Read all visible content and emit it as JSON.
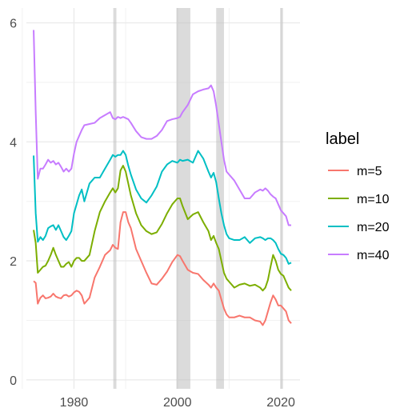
{
  "chart_data": {
    "type": "line",
    "xlim": [
      1970.8,
      2023.7
    ],
    "ylim": [
      -0.15,
      6.25
    ],
    "x_ticks": [
      1980,
      2000,
      2020
    ],
    "x_tick_labels": [
      "1980",
      "2000",
      "2020"
    ],
    "x_minor_ticks": [
      1970,
      1990,
      2010
    ],
    "y_ticks": [
      0,
      2,
      4,
      6
    ],
    "y_tick_labels": [
      "0",
      "2",
      "4",
      "6"
    ],
    "y_minor_ticks": [
      1,
      3,
      5
    ],
    "grid": true,
    "legend": {
      "title": "label",
      "position": "right"
    },
    "shaded_periods": [
      {
        "start": 1987.6,
        "end": 1988.2
      },
      {
        "start": 1999.8,
        "end": 2002.5
      },
      {
        "start": 2007.5,
        "end": 2009.0
      },
      {
        "start": 2019.9,
        "end": 2020.4
      }
    ],
    "series": [
      {
        "name": "m=5",
        "color": "#F8766D",
        "x": [
          1972.2,
          1972.6,
          1973.0,
          1973.5,
          1974.0,
          1974.5,
          1975.0,
          1975.5,
          1976.0,
          1976.5,
          1977.0,
          1977.5,
          1978.0,
          1978.5,
          1979.0,
          1979.5,
          1980.0,
          1980.5,
          1981.0,
          1981.5,
          1982.0,
          1983.0,
          1984.0,
          1985.0,
          1986.0,
          1987.0,
          1987.5,
          1988.0,
          1988.5,
          1989.0,
          1989.5,
          1990.0,
          1990.5,
          1991.0,
          1992.0,
          1993.0,
          1994.0,
          1995.0,
          1996.0,
          1997.0,
          1998.0,
          1999.0,
          2000.0,
          2000.5,
          2001.0,
          2002.0,
          2003.0,
          2004.0,
          2005.0,
          2006.0,
          2006.5,
          2007.0,
          2007.5,
          2008.0,
          2008.5,
          2009.0,
          2009.5,
          2010.0,
          2011.0,
          2012.0,
          2013.0,
          2014.0,
          2015.0,
          2016.0,
          2016.5,
          2017.0,
          2017.5,
          2018.0,
          2018.5,
          2019.0,
          2019.5,
          2020.0,
          2020.5,
          2021.0,
          2021.5,
          2022.0
        ],
        "y": [
          1.66,
          1.63,
          1.28,
          1.38,
          1.42,
          1.37,
          1.38,
          1.4,
          1.45,
          1.4,
          1.38,
          1.37,
          1.42,
          1.43,
          1.4,
          1.42,
          1.47,
          1.5,
          1.48,
          1.42,
          1.28,
          1.38,
          1.72,
          1.9,
          2.1,
          2.18,
          2.27,
          2.22,
          2.2,
          2.65,
          2.82,
          2.82,
          2.65,
          2.55,
          2.2,
          2.0,
          1.8,
          1.62,
          1.6,
          1.7,
          1.82,
          1.98,
          2.1,
          2.08,
          2.0,
          1.85,
          1.8,
          1.78,
          1.68,
          1.6,
          1.55,
          1.62,
          1.55,
          1.5,
          1.35,
          1.2,
          1.1,
          1.05,
          1.05,
          1.08,
          1.05,
          1.05,
          1.0,
          0.98,
          0.92,
          1.0,
          1.15,
          1.3,
          1.42,
          1.35,
          1.25,
          1.25,
          1.2,
          1.15,
          1.0,
          0.95
        ]
      },
      {
        "name": "m=10",
        "color": "#7CAE00",
        "x": [
          1972.2,
          1972.6,
          1973.0,
          1973.5,
          1974.0,
          1974.5,
          1975.0,
          1975.5,
          1976.0,
          1976.5,
          1977.0,
          1977.5,
          1978.0,
          1978.5,
          1979.0,
          1979.5,
          1980.0,
          1980.5,
          1981.0,
          1981.5,
          1982.0,
          1983.0,
          1984.0,
          1985.0,
          1986.0,
          1987.0,
          1987.5,
          1988.0,
          1988.5,
          1989.0,
          1989.5,
          1990.0,
          1990.5,
          1991.0,
          1992.0,
          1993.0,
          1994.0,
          1995.0,
          1996.0,
          1997.0,
          1998.0,
          1999.0,
          2000.0,
          2000.5,
          2001.0,
          2002.0,
          2003.0,
          2004.0,
          2005.0,
          2006.0,
          2006.5,
          2007.0,
          2007.5,
          2008.0,
          2008.5,
          2009.0,
          2009.5,
          2010.0,
          2011.0,
          2012.0,
          2013.0,
          2014.0,
          2015.0,
          2016.0,
          2016.5,
          2017.0,
          2017.5,
          2018.0,
          2018.5,
          2019.0,
          2019.5,
          2020.0,
          2020.5,
          2021.0,
          2021.5,
          2022.0
        ],
        "y": [
          2.52,
          2.3,
          1.8,
          1.85,
          1.9,
          1.92,
          2.0,
          2.1,
          2.22,
          2.1,
          2.0,
          1.9,
          1.9,
          1.95,
          1.98,
          1.9,
          2.0,
          2.05,
          2.05,
          2.0,
          2.0,
          2.1,
          2.5,
          2.82,
          3.0,
          3.15,
          3.22,
          3.15,
          3.22,
          3.52,
          3.6,
          3.5,
          3.3,
          3.1,
          2.8,
          2.6,
          2.5,
          2.45,
          2.48,
          2.62,
          2.8,
          2.95,
          3.05,
          3.05,
          2.92,
          2.7,
          2.78,
          2.82,
          2.65,
          2.5,
          2.35,
          2.42,
          2.3,
          2.2,
          2.0,
          1.8,
          1.7,
          1.65,
          1.55,
          1.6,
          1.62,
          1.58,
          1.6,
          1.55,
          1.5,
          1.55,
          1.68,
          1.9,
          2.1,
          2.0,
          1.85,
          1.78,
          1.75,
          1.65,
          1.55,
          1.5
        ]
      },
      {
        "name": "m=20",
        "color": "#00BFC4",
        "x": [
          1972.2,
          1972.6,
          1973.0,
          1973.5,
          1974.0,
          1974.5,
          1975.0,
          1975.5,
          1976.0,
          1976.5,
          1977.0,
          1977.5,
          1978.0,
          1978.5,
          1979.0,
          1979.5,
          1980.0,
          1980.5,
          1981.0,
          1981.5,
          1982.0,
          1983.0,
          1984.0,
          1985.0,
          1986.0,
          1987.0,
          1987.5,
          1988.0,
          1988.5,
          1989.0,
          1989.5,
          1990.0,
          1990.5,
          1991.0,
          1992.0,
          1993.0,
          1994.0,
          1995.0,
          1996.0,
          1997.0,
          1998.0,
          1999.0,
          2000.0,
          2000.5,
          2001.0,
          2002.0,
          2003.0,
          2004.0,
          2005.0,
          2006.0,
          2006.5,
          2007.0,
          2007.5,
          2008.0,
          2008.5,
          2009.0,
          2009.5,
          2010.0,
          2011.0,
          2012.0,
          2013.0,
          2014.0,
          2015.0,
          2016.0,
          2016.5,
          2017.0,
          2017.5,
          2018.0,
          2018.5,
          2019.0,
          2019.5,
          2020.0,
          2020.5,
          2021.0,
          2021.5,
          2022.0
        ],
        "y": [
          3.77,
          2.8,
          2.32,
          2.4,
          2.35,
          2.42,
          2.55,
          2.58,
          2.6,
          2.52,
          2.6,
          2.5,
          2.4,
          2.35,
          2.42,
          2.5,
          2.8,
          2.95,
          3.1,
          3.2,
          3.0,
          3.3,
          3.4,
          3.4,
          3.55,
          3.7,
          3.78,
          3.75,
          3.78,
          3.78,
          3.85,
          3.78,
          3.6,
          3.45,
          3.2,
          3.05,
          2.98,
          3.1,
          3.25,
          3.5,
          3.62,
          3.68,
          3.65,
          3.7,
          3.68,
          3.7,
          3.65,
          3.85,
          3.72,
          3.5,
          3.4,
          3.48,
          3.32,
          3.05,
          2.8,
          2.6,
          2.45,
          2.38,
          2.35,
          2.35,
          2.4,
          2.3,
          2.38,
          2.4,
          2.38,
          2.35,
          2.38,
          2.38,
          2.35,
          2.3,
          2.2,
          2.12,
          2.1,
          2.05,
          1.95,
          1.97
        ]
      },
      {
        "name": "m=40",
        "color": "#C77CFF",
        "x": [
          1972.2,
          1972.6,
          1973.0,
          1973.5,
          1974.0,
          1974.5,
          1975.0,
          1975.5,
          1976.0,
          1976.5,
          1977.0,
          1977.5,
          1978.0,
          1978.5,
          1979.0,
          1979.5,
          1980.0,
          1980.5,
          1981.0,
          1981.5,
          1982.0,
          1983.0,
          1984.0,
          1985.0,
          1986.0,
          1987.0,
          1987.5,
          1988.0,
          1988.5,
          1989.0,
          1989.5,
          1990.0,
          1990.5,
          1991.0,
          1992.0,
          1993.0,
          1994.0,
          1995.0,
          1996.0,
          1997.0,
          1998.0,
          1999.0,
          2000.0,
          2000.5,
          2001.0,
          2002.0,
          2003.0,
          2004.0,
          2005.0,
          2006.0,
          2006.5,
          2007.0,
          2007.5,
          2008.0,
          2008.5,
          2009.0,
          2009.5,
          2010.0,
          2011.0,
          2012.0,
          2013.0,
          2014.0,
          2015.0,
          2016.0,
          2016.5,
          2017.0,
          2017.5,
          2018.0,
          2018.5,
          2019.0,
          2019.5,
          2020.0,
          2020.5,
          2021.0,
          2021.5,
          2022.0
        ],
        "y": [
          5.88,
          4.5,
          3.38,
          3.55,
          3.55,
          3.62,
          3.7,
          3.65,
          3.68,
          3.62,
          3.65,
          3.58,
          3.5,
          3.55,
          3.5,
          3.55,
          3.8,
          4.0,
          4.1,
          4.2,
          4.28,
          4.3,
          4.32,
          4.4,
          4.45,
          4.5,
          4.4,
          4.38,
          4.42,
          4.4,
          4.42,
          4.4,
          4.38,
          4.32,
          4.18,
          4.08,
          4.05,
          4.05,
          4.1,
          4.2,
          4.35,
          4.38,
          4.4,
          4.42,
          4.5,
          4.62,
          4.8,
          4.85,
          4.88,
          4.9,
          4.95,
          4.85,
          4.6,
          4.3,
          4.0,
          3.7,
          3.5,
          3.45,
          3.35,
          3.2,
          3.05,
          3.05,
          3.15,
          3.2,
          3.18,
          3.22,
          3.18,
          3.12,
          3.08,
          3.05,
          2.95,
          2.85,
          2.8,
          2.75,
          2.6,
          2.6
        ]
      }
    ]
  }
}
